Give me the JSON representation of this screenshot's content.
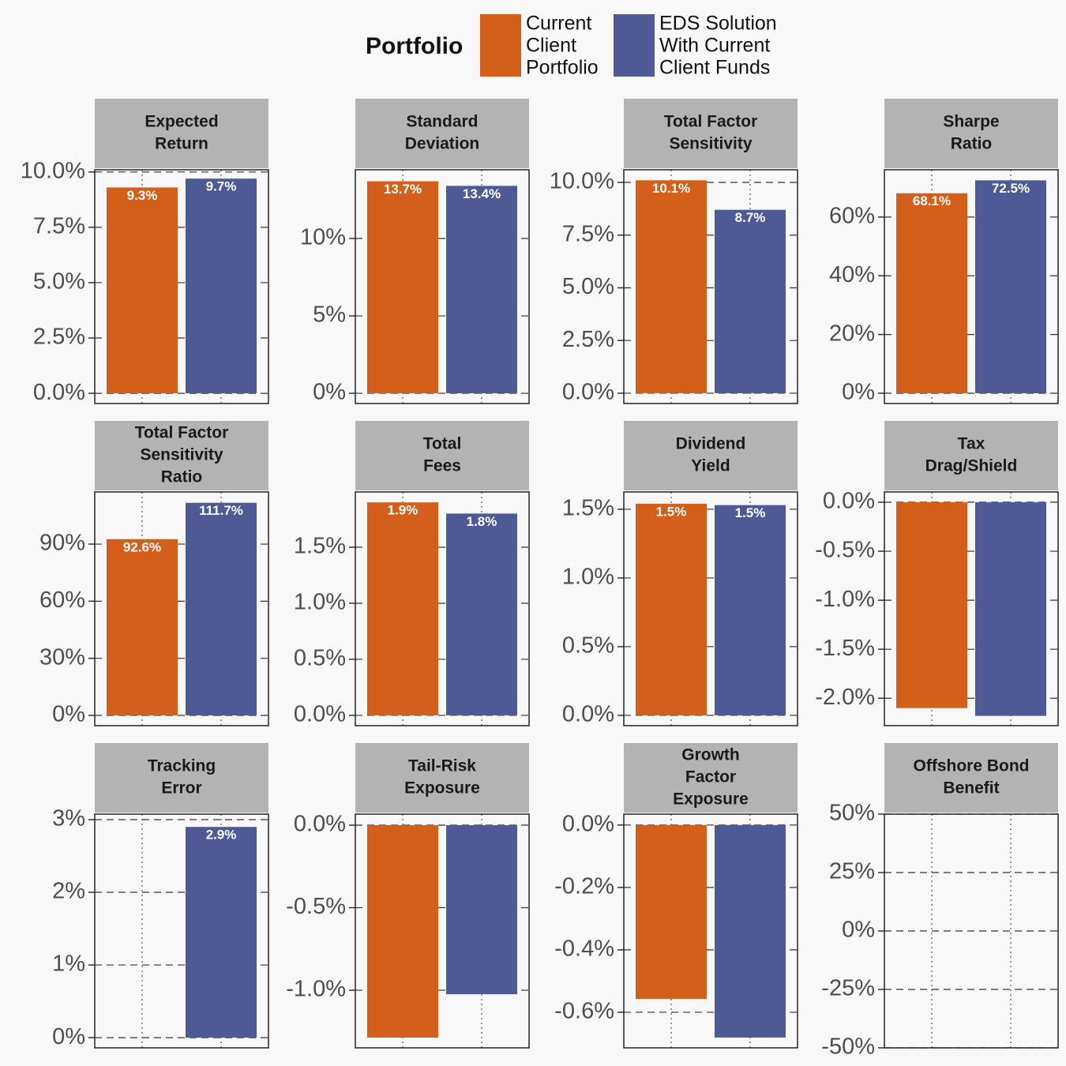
{
  "legend": {
    "title": "Portfolio",
    "series": [
      {
        "name": [
          "Current",
          "Client",
          "Portfolio"
        ],
        "color": "#d35f1a"
      },
      {
        "name": [
          "EDS Solution",
          "With Current",
          "Client Funds"
        ],
        "color": "#4e5a96"
      }
    ]
  },
  "chart_data": [
    {
      "type": "bar",
      "title": [
        "Expected",
        "Return"
      ],
      "values": [
        9.3,
        9.7
      ],
      "value_labels": [
        "9.3%",
        "9.7%"
      ],
      "ylim": [
        -0.46,
        10.1
      ],
      "yticks": [
        {
          "value": 0,
          "label": "0.0%"
        },
        {
          "value": 2.5,
          "label": "2.5%"
        },
        {
          "value": 5,
          "label": "5.0%"
        },
        {
          "value": 7.5,
          "label": "7.5%"
        },
        {
          "value": 10,
          "label": "10.0%"
        }
      ]
    },
    {
      "type": "bar",
      "title": [
        "Standard",
        "Deviation"
      ],
      "values": [
        13.7,
        13.4
      ],
      "value_labels": [
        "13.7%",
        "13.4%"
      ],
      "ylim": [
        -0.66,
        14.44
      ],
      "yticks": [
        {
          "value": 0,
          "label": "0%"
        },
        {
          "value": 5,
          "label": "5%"
        },
        {
          "value": 10,
          "label": "10%"
        }
      ]
    },
    {
      "type": "bar",
      "title": [
        "Total Factor",
        "Sensitivity"
      ],
      "values": [
        10.1,
        8.7
      ],
      "value_labels": [
        "10.1%",
        "8.7%"
      ],
      "ylim": [
        -0.49,
        10.6
      ],
      "yticks": [
        {
          "value": 0,
          "label": "0.0%"
        },
        {
          "value": 2.5,
          "label": "2.5%"
        },
        {
          "value": 5,
          "label": "5.0%"
        },
        {
          "value": 7.5,
          "label": "7.5%"
        },
        {
          "value": 10,
          "label": "10.0%"
        }
      ]
    },
    {
      "type": "bar",
      "title": [
        "Sharpe",
        "Ratio"
      ],
      "values": [
        68.1,
        72.5
      ],
      "value_labels": [
        "68.1%",
        "72.5%"
      ],
      "ylim": [
        -3.5,
        76.1
      ],
      "yticks": [
        {
          "value": 0,
          "label": "0%"
        },
        {
          "value": 20,
          "label": "20%"
        },
        {
          "value": 40,
          "label": "40%"
        },
        {
          "value": 60,
          "label": "60%"
        }
      ]
    },
    {
      "type": "bar",
      "title": [
        "Total Factor",
        "Sensitivity",
        "Ratio"
      ],
      "values": [
        92.6,
        111.7
      ],
      "value_labels": [
        "92.6%",
        "111.7%"
      ],
      "ylim": [
        -5.4,
        117.4
      ],
      "yticks": [
        {
          "value": 0,
          "label": "0%"
        },
        {
          "value": 30,
          "label": "30%"
        },
        {
          "value": 60,
          "label": "60%"
        },
        {
          "value": 90,
          "label": "90%"
        }
      ]
    },
    {
      "type": "bar",
      "title": [
        "Total",
        "Fees"
      ],
      "values": [
        1.9,
        1.8
      ],
      "value_labels": [
        "1.9%",
        "1.8%"
      ],
      "ylim": [
        -0.092,
        1.993
      ],
      "yticks": [
        {
          "value": 0,
          "label": "0.0%"
        },
        {
          "value": 0.5,
          "label": "0.5%"
        },
        {
          "value": 1,
          "label": "1.0%"
        },
        {
          "value": 1.5,
          "label": "1.5%"
        }
      ]
    },
    {
      "type": "bar",
      "title": [
        "Dividend",
        "Yield"
      ],
      "values": [
        1.54,
        1.53
      ],
      "value_labels": [
        "1.5%",
        "1.5%"
      ],
      "ylim": [
        -0.075,
        1.626
      ],
      "yticks": [
        {
          "value": 0,
          "label": "0.0%"
        },
        {
          "value": 0.5,
          "label": "0.5%"
        },
        {
          "value": 1,
          "label": "1.0%"
        },
        {
          "value": 1.5,
          "label": "1.5%"
        }
      ]
    },
    {
      "type": "bar",
      "title": [
        "Tax",
        "Drag/Shield"
      ],
      "values": [
        -2.1,
        -2.18
      ],
      "ylim": [
        -2.28,
        0.105
      ],
      "yticks": [
        {
          "value": -2,
          "label": "-2.0%"
        },
        {
          "value": -1.5,
          "label": "-1.5%"
        },
        {
          "value": -1,
          "label": "-1.0%"
        },
        {
          "value": -0.5,
          "label": "-0.5%"
        },
        {
          "value": 0,
          "label": "0.0%"
        }
      ]
    },
    {
      "type": "bar",
      "title": [
        "Tracking",
        "Error"
      ],
      "values": [
        0,
        2.9
      ],
      "value_labels": [
        null,
        "2.9%"
      ],
      "ylim": [
        -0.14,
        3.076
      ],
      "yticks": [
        {
          "value": 0,
          "label": "0%"
        },
        {
          "value": 1,
          "label": "1%"
        },
        {
          "value": 2,
          "label": "2%"
        },
        {
          "value": 3,
          "label": "3%"
        }
      ]
    },
    {
      "type": "bar",
      "title": [
        "Tail-Risk",
        "Exposure"
      ],
      "values": [
        -1.287,
        -1.024
      ],
      "ylim": [
        -1.349,
        0.067
      ],
      "yticks": [
        {
          "value": -1,
          "label": "-1.0%"
        },
        {
          "value": -0.5,
          "label": "-0.5%"
        },
        {
          "value": 0,
          "label": "0.0%"
        }
      ]
    },
    {
      "type": "bar",
      "title": [
        "Growth",
        "Factor",
        "Exposure"
      ],
      "values": [
        -0.557,
        -0.681
      ],
      "ylim": [
        -0.714,
        0.035
      ],
      "yticks": [
        {
          "value": -0.6,
          "label": "-0.6%"
        },
        {
          "value": -0.4,
          "label": "-0.4%"
        },
        {
          "value": -0.2,
          "label": "-0.2%"
        },
        {
          "value": 0,
          "label": "0.0%"
        }
      ]
    },
    {
      "type": "bar",
      "title": [
        "Offshore Bond",
        "Benefit"
      ],
      "values": [
        0,
        0
      ],
      "ylim": [
        -50,
        50
      ],
      "yticks": [
        {
          "value": -50,
          "label": "-50%"
        },
        {
          "value": -25,
          "label": "-25%"
        },
        {
          "value": 0,
          "label": "0%"
        },
        {
          "value": 25,
          "label": "25%"
        },
        {
          "value": 50,
          "label": "50%"
        }
      ]
    }
  ]
}
